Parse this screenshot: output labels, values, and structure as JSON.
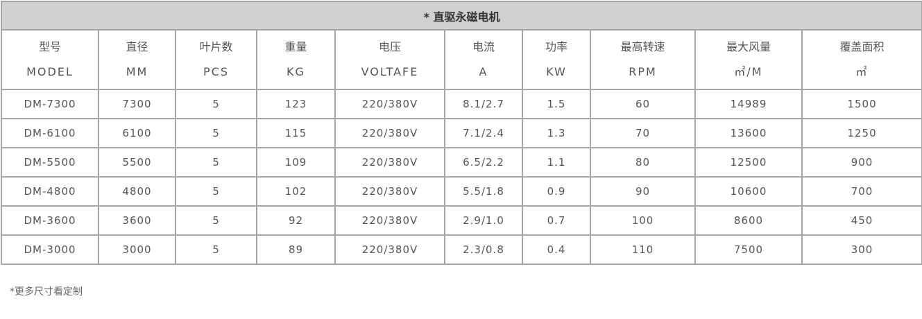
{
  "title": "* 直驱永磁电机",
  "columns": [
    {
      "cn": "型号",
      "en": "MODEL"
    },
    {
      "cn": "直径",
      "en": "MM"
    },
    {
      "cn": "叶片数",
      "en": "PCS"
    },
    {
      "cn": "重量",
      "en": "KG"
    },
    {
      "cn": "电压",
      "en": "VOLTAFE"
    },
    {
      "cn": "电流",
      "en": "A"
    },
    {
      "cn": "功率",
      "en": "KW"
    },
    {
      "cn": "最高转速",
      "en": "RPM"
    },
    {
      "cn": "最大风量",
      "en": "㎡/M"
    },
    {
      "cn": "覆盖面积",
      "en": "㎡"
    }
  ],
  "rows": [
    [
      "DM-7300",
      "7300",
      "5",
      "123",
      "220/380V",
      "8.1/2.7",
      "1.5",
      "60",
      "14989",
      "1500"
    ],
    [
      "DM-6100",
      "6100",
      "5",
      "115",
      "220/380V",
      "7.1/2.4",
      "1.3",
      "70",
      "13600",
      "1250"
    ],
    [
      "DM-5500",
      "5500",
      "5",
      "109",
      "220/380V",
      "6.5/2.2",
      "1.1",
      "80",
      "12500",
      "900"
    ],
    [
      "DM-4800",
      "4800",
      "5",
      "102",
      "220/380V",
      "5.5/1.8",
      "0.9",
      "90",
      "10600",
      "700"
    ],
    [
      "DM-3600",
      "3600",
      "5",
      "92",
      "220/380V",
      "2.9/1.0",
      "0.7",
      "100",
      "8600",
      "450"
    ],
    [
      "DM-3000",
      "3000",
      "5",
      "89",
      "220/380V",
      "2.3/0.8",
      "0.4",
      "110",
      "7500",
      "300"
    ]
  ],
  "note": "*更多尺寸看定制"
}
